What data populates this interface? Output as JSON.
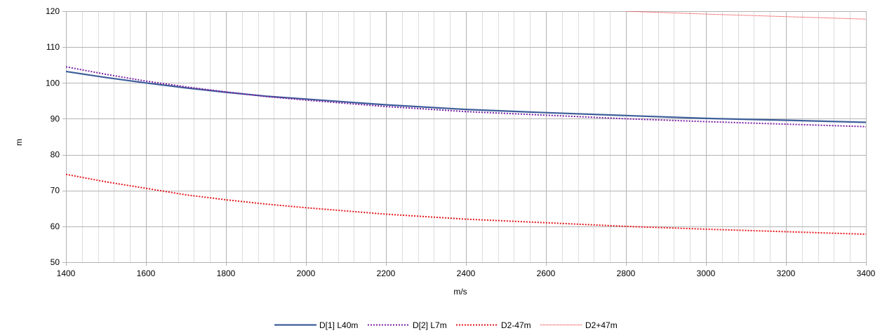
{
  "chart_data": {
    "type": "line",
    "xlabel": "m/s",
    "ylabel": "m",
    "xlim": [
      1400,
      3400
    ],
    "ylim": [
      50,
      120
    ],
    "x_major_ticks": [
      "1400",
      "1600",
      "1800",
      "2000",
      "2200",
      "2400",
      "2600",
      "2800",
      "3000",
      "3200",
      "3400"
    ],
    "y_major_ticks": [
      "50",
      "60",
      "70",
      "80",
      "90",
      "100",
      "110",
      "120"
    ],
    "x_minor_step": 40,
    "grid": true,
    "legend_position": "bottom",
    "series": [
      {
        "name": "D[1] L40m",
        "color": "#3d5e9a",
        "style": "solid",
        "x": [
          1400,
          1500,
          1600,
          1700,
          1800,
          1900,
          2000,
          2200,
          2400,
          2600,
          2800,
          3000,
          3200,
          3400
        ],
        "y": [
          103.2,
          101.5,
          100.0,
          98.6,
          97.4,
          96.3,
          95.5,
          93.9,
          92.6,
          91.7,
          90.9,
          90.1,
          89.6,
          89.0
        ]
      },
      {
        "name": "D[2] L7m",
        "color": "#7b1fa2",
        "style": "dotted",
        "x": [
          1400,
          1500,
          1600,
          1700,
          1800,
          1900,
          2000,
          2200,
          2400,
          2600,
          2800,
          3000,
          3200,
          3400
        ],
        "y": [
          104.5,
          102.4,
          100.5,
          98.9,
          97.5,
          96.2,
          95.2,
          93.4,
          92.0,
          91.0,
          90.0,
          89.2,
          88.5,
          87.8
        ]
      },
      {
        "name": "D2-47m",
        "color": "#e8161b",
        "style": "dotted",
        "x": [
          1400,
          1500,
          1600,
          1700,
          1800,
          1900,
          2000,
          2200,
          2400,
          2600,
          2800,
          3000,
          3200,
          3400
        ],
        "y": [
          74.5,
          72.4,
          70.6,
          68.8,
          67.4,
          66.2,
          65.2,
          63.4,
          62.0,
          61.0,
          60.0,
          59.2,
          58.5,
          57.8
        ]
      },
      {
        "name": "D2+47m",
        "color": "#e8161b",
        "style": "thin",
        "x": [
          2800,
          3000,
          3200,
          3400
        ],
        "y": [
          120.0,
          119.2,
          118.5,
          117.8
        ]
      }
    ]
  }
}
